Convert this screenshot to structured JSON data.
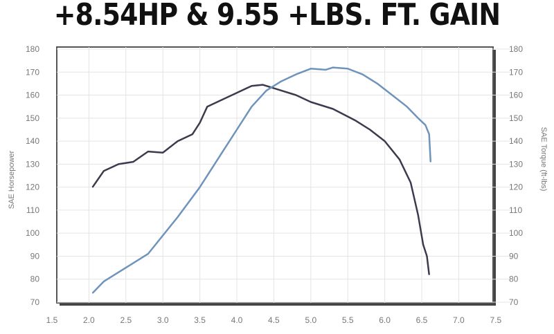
{
  "chart_data": {
    "type": "line",
    "title": "+8.54HP & 9.55 +LBS. FT. GAIN",
    "xlabel": "",
    "ylabel": "SAE Horsepower",
    "y2label": "SAE Torque (ft-lbs)",
    "xlim": [
      1.5,
      7.5
    ],
    "ylim": [
      70,
      180
    ],
    "y2lim": [
      70,
      180
    ],
    "xticks": [
      "1.5",
      "2.0",
      "2.5",
      "3.0",
      "3.5",
      "4.0",
      "4.5",
      "5.0",
      "5.5",
      "6.0",
      "6.5",
      "7.0",
      "7.5"
    ],
    "yticks": [
      "70",
      "80",
      "90",
      "100",
      "110",
      "120",
      "130",
      "140",
      "150",
      "160",
      "170",
      "180"
    ],
    "grid": true,
    "series": [
      {
        "axis": "left",
        "color": "#3b3b4d",
        "x": [
          2.05,
          2.2,
          2.4,
          2.6,
          2.8,
          3.0,
          3.2,
          3.4,
          3.5,
          3.6,
          3.8,
          4.0,
          4.2,
          4.35,
          4.5,
          4.8,
          5.0,
          5.3,
          5.6,
          5.8,
          6.0,
          6.2,
          6.35,
          6.45,
          6.52,
          6.57,
          6.6
        ],
        "y": [
          120,
          127,
          130,
          131,
          135.5,
          135,
          140,
          143,
          148,
          155,
          158,
          161,
          164,
          164.5,
          163,
          160,
          157,
          154,
          149,
          145,
          140,
          132,
          122,
          108,
          95,
          90,
          82
        ]
      },
      {
        "axis": "right",
        "color": "#6f93bb",
        "x": [
          2.05,
          2.2,
          2.5,
          2.8,
          3.0,
          3.2,
          3.5,
          3.8,
          4.0,
          4.2,
          4.4,
          4.6,
          4.8,
          5.0,
          5.2,
          5.3,
          5.5,
          5.7,
          5.9,
          6.1,
          6.3,
          6.45,
          6.55,
          6.6,
          6.62
        ],
        "y": [
          74,
          79,
          85,
          91,
          99,
          107,
          120,
          135,
          145,
          155,
          162,
          166,
          169,
          171.5,
          171,
          172,
          171.5,
          169,
          165,
          160,
          155,
          150,
          147,
          143,
          131
        ]
      }
    ]
  }
}
